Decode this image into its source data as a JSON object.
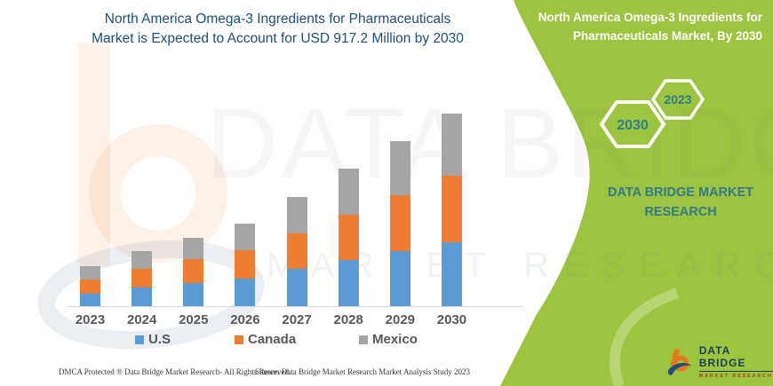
{
  "title": {
    "line1": "North America Omega-3 Ingredients for Pharmaceuticals",
    "line2": "Market is Expected to Account for USD 917.2 Million by 2030"
  },
  "right_panel": {
    "heading_line1": "North America Omega-3 Ingredients for",
    "heading_line2": "Pharmaceuticals Market, By 2030",
    "hexagons": [
      {
        "label": "2023"
      },
      {
        "label": "2030"
      }
    ],
    "brand_line1": "DATA BRIDGE MARKET",
    "brand_line2": "RESEARCH",
    "logo_name": "DATA BRIDGE",
    "logo_subtitle": "MARKET RESEARCH",
    "background_color": "#9DC43E",
    "hexagon_text_color": "#2F7E8E"
  },
  "chart_data": {
    "type": "bar",
    "stacked": true,
    "title": "North America Omega-3 Ingredients for Pharmaceuticals Market is Expected to Account for USD 917.2 Million by 2030",
    "categories": [
      "2023",
      "2024",
      "2025",
      "2026",
      "2027",
      "2028",
      "2029",
      "2030"
    ],
    "series": [
      {
        "name": "U.S",
        "color": "#5B9BD5",
        "values": [
          59,
          89,
          110,
          130,
          176,
          221,
          261,
          306
        ]
      },
      {
        "name": "Canada",
        "color": "#ED7D31",
        "values": [
          66,
          87,
          113,
          135,
          172,
          213,
          268,
          317.2
        ]
      },
      {
        "name": "Mexico",
        "color": "#A5A5A5",
        "values": [
          66,
          88,
          104,
          127,
          172,
          221,
          256,
          294
        ]
      }
    ],
    "totals": [
      191,
      264,
      327,
      392,
      520,
      655,
      785,
      917.2
    ],
    "unit": "USD Million",
    "xlabel": "",
    "ylabel": "",
    "y_axis_shown": false,
    "grid": false,
    "legend_position": "bottom",
    "highlight_value_2030_total": "USD 917.2 Million"
  },
  "footer": {
    "left": "DMCA Protected ® Data Bridge Market Research-  All Rights Reserved.",
    "source": "Source: Data Bridge Market Research  Market Analysis Study 2023"
  }
}
